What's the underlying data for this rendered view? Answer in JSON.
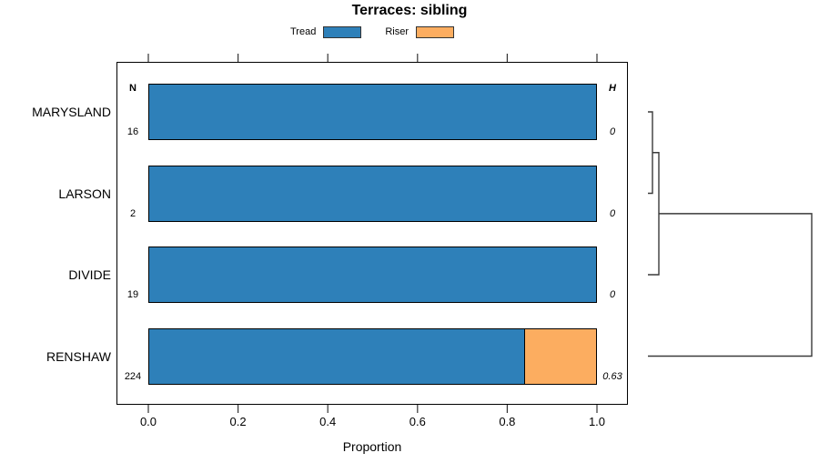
{
  "title": "Terraces: sibling",
  "legend": {
    "items": [
      {
        "label": "Tread",
        "color": "#2E80B9"
      },
      {
        "label": "Riser",
        "color": "#FCAD60"
      }
    ]
  },
  "table": {
    "n_header": "N",
    "h_header": "H"
  },
  "x_axis": {
    "label": "Proportion",
    "tick_labels": [
      "0.0",
      "0.2",
      "0.4",
      "0.6",
      "0.8",
      "1.0"
    ]
  },
  "chart_data": {
    "type": "bar",
    "orientation": "horizontal",
    "stacked": true,
    "title": "Terraces: sibling",
    "xlabel": "Proportion",
    "xlim": [
      0,
      1
    ],
    "x_ticks": [
      0.0,
      0.2,
      0.4,
      0.6,
      0.8,
      1.0
    ],
    "legend_position": "top",
    "grid": false,
    "categories": [
      "MARYSLAND",
      "LARSON",
      "DIVIDE",
      "RENSHAW"
    ],
    "series": [
      {
        "name": "Tread",
        "color": "#2E80B9",
        "values": [
          1.0,
          1.0,
          1.0,
          0.84
        ]
      },
      {
        "name": "Riser",
        "color": "#FCAD60",
        "values": [
          0.0,
          0.0,
          0.0,
          0.16
        ]
      }
    ],
    "row_annotations": {
      "N": [
        "16",
        "2",
        "19",
        "224"
      ],
      "H": [
        "0",
        "0",
        "0",
        "0.63"
      ]
    },
    "dendrogram": {
      "side": "right",
      "leaves": [
        "MARYSLAND",
        "LARSON",
        "DIVIDE",
        "RENSHAW"
      ],
      "merges": [
        {
          "a": "leaf:0",
          "b": "leaf:1",
          "height": 5
        },
        {
          "a": "merge:0",
          "b": "leaf:2",
          "height": 12
        },
        {
          "a": "merge:1",
          "b": "leaf:3",
          "height": 180
        }
      ]
    }
  }
}
